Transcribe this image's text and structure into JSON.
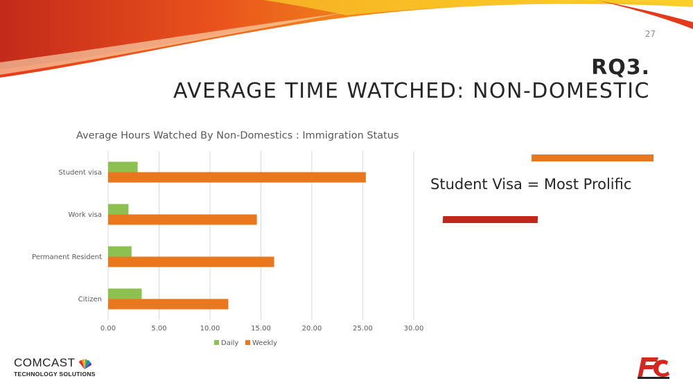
{
  "slide": {
    "number": "27",
    "title_line1": "RQ3.",
    "title_line2": "AVERAGE TIME WATCHED: NON-DOMESTIC",
    "callout": "Student Visa = Most Prolific"
  },
  "logos": {
    "comcast_word": "COMCAST",
    "comcast_sub": "TECHNOLOGY SOLUTIONS"
  },
  "colors": {
    "daily": "#8cc152",
    "weekly": "#e8771e",
    "accent_red": "#c0281b"
  },
  "chart_data": {
    "type": "bar",
    "orientation": "horizontal",
    "title": "Average Hours Watched By Non-Domestics : Immigration Status",
    "categories": [
      "Student visa",
      "Work visa",
      "Permanent Resident",
      "Citizen"
    ],
    "series": [
      {
        "name": "Daily",
        "values": [
          2.9,
          2.0,
          2.3,
          3.3
        ]
      },
      {
        "name": "Weekly",
        "values": [
          25.3,
          14.6,
          16.3,
          11.8
        ]
      }
    ],
    "xlim": [
      0,
      30
    ],
    "xticks": [
      "0.00",
      "5.00",
      "10.00",
      "15.00",
      "20.00",
      "25.00",
      "30.00"
    ],
    "grid": true,
    "legend": "bottom"
  }
}
